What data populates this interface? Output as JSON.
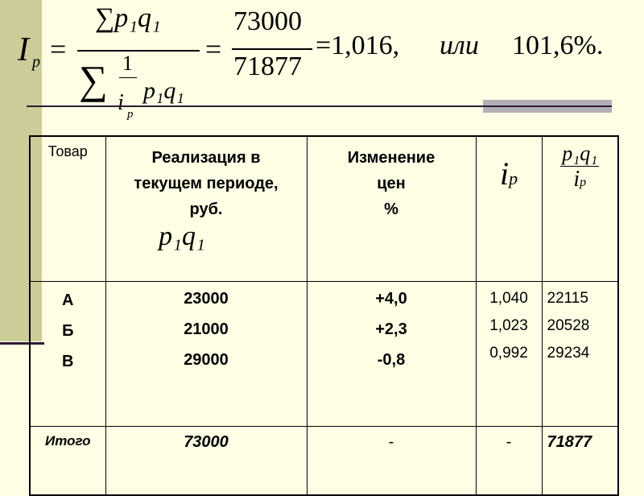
{
  "formula": {
    "lhs_symbol": "I",
    "lhs_subscript": "p",
    "eq": "=",
    "numerator": "∑p₁q₁",
    "denominator_sum": "∑",
    "denominator_frac_num": "1",
    "denominator_frac_den_i": "i",
    "denominator_frac_den_sub": "p",
    "denominator_term": "p₁q₁",
    "value_num": "73000",
    "value_den": "71877",
    "result": "=1,016,",
    "or_word": "или",
    "percent": "101,6%."
  },
  "table": {
    "headers": {
      "product": "Товар",
      "sales": "Реализация в текущем периоде, руб.",
      "sales_formula": "p₁q₁",
      "price_change": "Изменение цен",
      "price_change_unit": "%",
      "ip_i": "i",
      "ip_sub": "p",
      "ratio_num": "p₁q₁",
      "ratio_den_i": "i",
      "ratio_den_sub": "p"
    },
    "rows": [
      {
        "product": "А",
        "sales": "23000",
        "change": "+4,0",
        "ip": "1,040",
        "ratio": "22115"
      },
      {
        "product": "Б",
        "sales": "21000",
        "change": "+2,3",
        "ip": "1,023",
        "ratio": "20528"
      },
      {
        "product": "В",
        "sales": "29000",
        "change": "-0,8",
        "ip": "0,992",
        "ratio": "29234"
      }
    ],
    "total": {
      "label": "Итого",
      "sales": "73000",
      "change": "-",
      "ip": "-",
      "ratio": "71877"
    }
  }
}
